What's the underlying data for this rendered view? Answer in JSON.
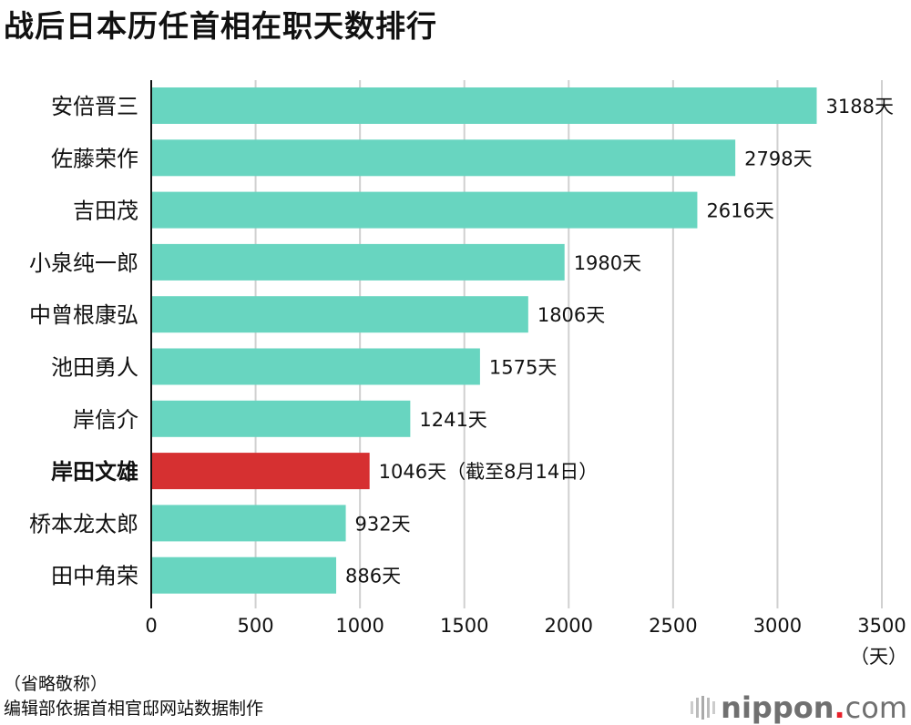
{
  "chart_data": {
    "type": "bar",
    "orientation": "horizontal",
    "title": "战后日本历任首相在职天数排行",
    "categories": [
      "安倍晋三",
      "佐藤荣作",
      "吉田茂",
      "小泉纯一郎",
      "中曾根康弘",
      "池田勇人",
      "岸信介",
      "岸田文雄",
      "桥本龙太郎",
      "田中角荣"
    ],
    "values": [
      3188,
      2798,
      2616,
      1980,
      1806,
      1575,
      1241,
      1046,
      932,
      886
    ],
    "value_labels": [
      "3188天",
      "2798天",
      "2616天",
      "1980天",
      "1806天",
      "1575天",
      "1241天",
      "1046天（截至8月14日）",
      "932天",
      "886天"
    ],
    "highlight_index": 7,
    "xlim": [
      0,
      3500
    ],
    "xticks": [
      0,
      500,
      1000,
      1500,
      2000,
      2500,
      3000,
      3500
    ],
    "xunit": "（天）",
    "grid": true,
    "colors": {
      "bar": "#68d5c0",
      "highlight": "#d63031",
      "grid": "#d0d0d0",
      "axis": "#111111"
    }
  },
  "notes": {
    "line1": "（省略敬称）",
    "line2": "编辑部依据首相官邸网站数据制作"
  },
  "logo": {
    "text": "nippon",
    "dot": ".",
    "com": "com"
  }
}
